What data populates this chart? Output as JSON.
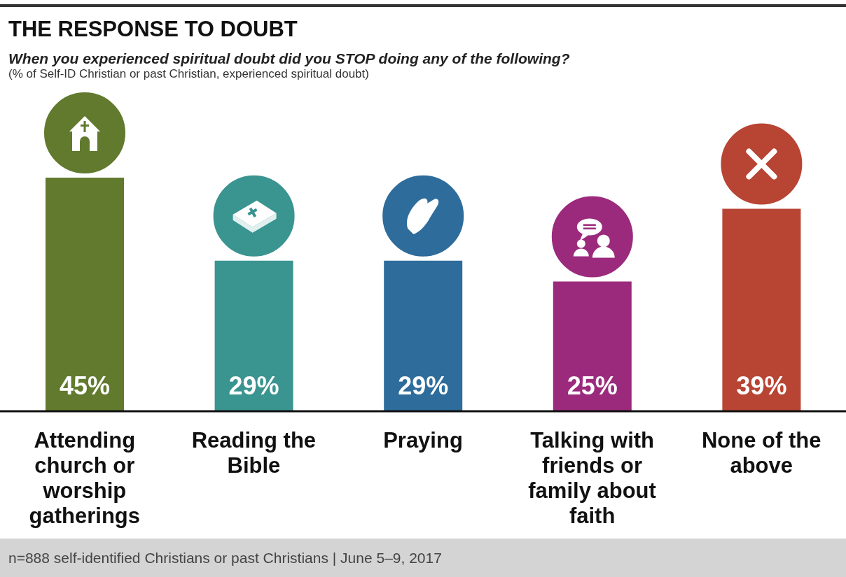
{
  "chart_data": {
    "type": "bar",
    "title": "THE RESPONSE TO DOUBT",
    "subtitle": "When you experienced spiritual doubt did you STOP doing any of the following?",
    "annotations": [
      "(% of Self-ID Christian or past Christian, experienced spiritual doubt)",
      "n=888 self-identified Christians or past Christians | June 5–9, 2017"
    ],
    "categories": [
      "Attending church or worship gatherings",
      "Reading the Bible",
      "Praying",
      "Talking with friends or family about faith",
      "None of the above"
    ],
    "values": [
      45,
      29,
      29,
      25,
      39
    ],
    "value_labels": [
      "45%",
      "29%",
      "29%",
      "25%",
      "39%"
    ],
    "colors": [
      "#617a2e",
      "#3a9490",
      "#2d6c9b",
      "#9b2a7d",
      "#b84433"
    ],
    "grid": false,
    "legend": false
  }
}
